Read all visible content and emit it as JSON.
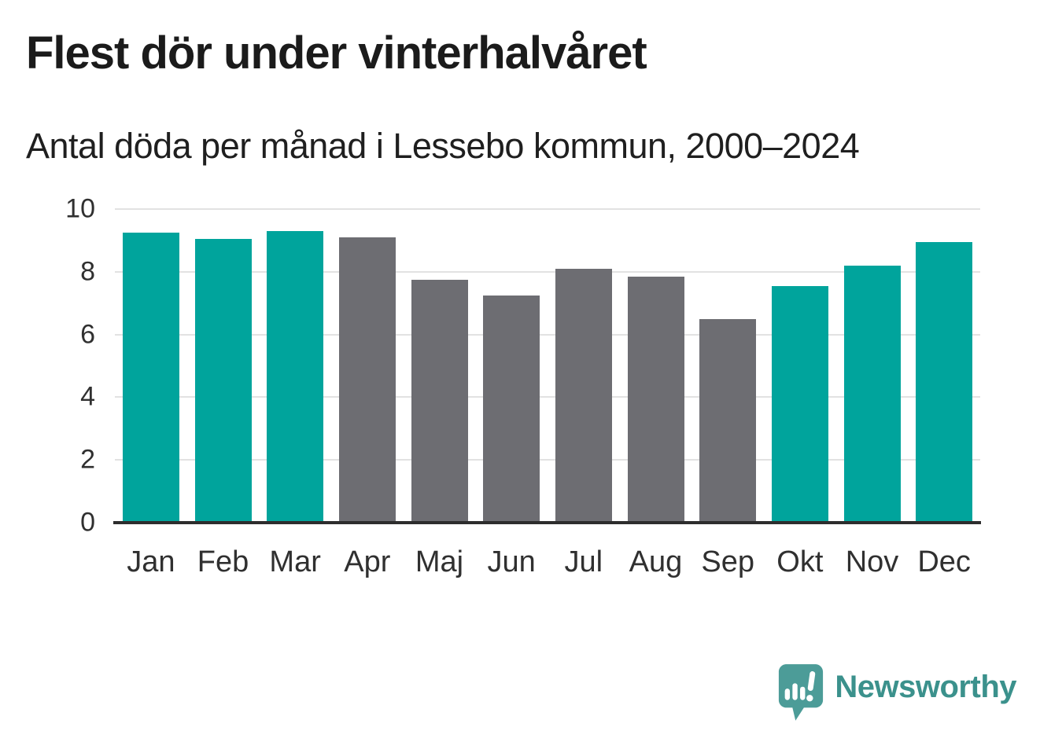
{
  "header": {
    "title": "Flest dör under vinterhalvåret",
    "subtitle": "Antal döda per månad i Lessebo kommun, 2000–2024"
  },
  "chart_data": {
    "type": "bar",
    "title": "Flest dör under vinterhalvåret",
    "subtitle": "Antal döda per månad i Lessebo kommun, 2000–2024",
    "categories": [
      "Jan",
      "Feb",
      "Mar",
      "Apr",
      "Maj",
      "Jun",
      "Jul",
      "Aug",
      "Sep",
      "Okt",
      "Nov",
      "Dec"
    ],
    "values": [
      9.25,
      9.05,
      9.3,
      9.1,
      7.75,
      7.25,
      8.1,
      7.85,
      6.5,
      7.55,
      8.2,
      8.95
    ],
    "groups": [
      "winter",
      "winter",
      "winter",
      "summer",
      "summer",
      "summer",
      "summer",
      "summer",
      "summer",
      "winter",
      "winter",
      "winter"
    ],
    "group_colors": {
      "winter": "#00a49c",
      "summer": "#6d6d72"
    },
    "xlabel": "",
    "ylabel": "",
    "ylim": [
      0,
      10
    ],
    "yticks": [
      0,
      2,
      4,
      6,
      8,
      10
    ],
    "ytick_labels": [
      "0",
      "2",
      "4",
      "6",
      "8",
      "10"
    ],
    "grid": true,
    "gridline_color": "#e2e2e2",
    "axis_line_color": "#2d2d2d",
    "legend": "none"
  },
  "logo": {
    "text": "Newsworthy",
    "text_color": "#3b918c",
    "bubble_color": "#4c9c98",
    "icon": "newsworthy-bubble-chart-icon"
  }
}
